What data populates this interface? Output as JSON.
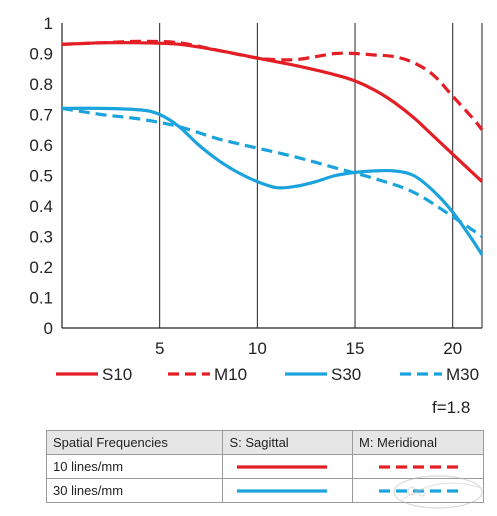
{
  "chart_data": {
    "type": "line",
    "title": "",
    "xlabel": "",
    "ylabel": "",
    "xlim": [
      0,
      21.5
    ],
    "ylim": [
      0,
      1
    ],
    "x_ticks": [
      5,
      10,
      15,
      20
    ],
    "y_ticks": [
      0,
      0.1,
      0.2,
      0.3,
      0.4,
      0.5,
      0.6,
      0.7,
      0.8,
      0.9,
      1
    ],
    "y_tick_labels": [
      "0",
      "0.1",
      "0.2",
      "0.3",
      "0.4",
      "0.5",
      "0.6",
      "0.7",
      "0.8",
      "0.9",
      "1"
    ],
    "grid": true,
    "legend_position": "bottom",
    "series": [
      {
        "name": "S10",
        "color": "#e31e24",
        "style": "solid",
        "points": [
          [
            0,
            0.93
          ],
          [
            2,
            0.935
          ],
          [
            4,
            0.935
          ],
          [
            6,
            0.93
          ],
          [
            8,
            0.91
          ],
          [
            10,
            0.885
          ],
          [
            12,
            0.86
          ],
          [
            14,
            0.83
          ],
          [
            15,
            0.81
          ],
          [
            16,
            0.78
          ],
          [
            17,
            0.74
          ],
          [
            18,
            0.69
          ],
          [
            19,
            0.63
          ],
          [
            20,
            0.57
          ],
          [
            21,
            0.51
          ],
          [
            21.5,
            0.48
          ]
        ]
      },
      {
        "name": "M10",
        "color": "#e31e24",
        "style": "dashed",
        "points": [
          [
            0,
            0.93
          ],
          [
            2,
            0.935
          ],
          [
            4,
            0.94
          ],
          [
            6,
            0.935
          ],
          [
            8,
            0.91
          ],
          [
            10,
            0.885
          ],
          [
            11,
            0.88
          ],
          [
            12,
            0.88
          ],
          [
            13,
            0.89
          ],
          [
            14,
            0.9
          ],
          [
            15,
            0.9
          ],
          [
            16,
            0.895
          ],
          [
            17,
            0.89
          ],
          [
            18,
            0.87
          ],
          [
            19,
            0.83
          ],
          [
            20,
            0.76
          ],
          [
            21,
            0.69
          ],
          [
            21.5,
            0.65
          ]
        ]
      },
      {
        "name": "S30",
        "color": "#1aa3dc",
        "style": "solid",
        "points": [
          [
            0,
            0.72
          ],
          [
            2,
            0.72
          ],
          [
            4,
            0.715
          ],
          [
            5,
            0.7
          ],
          [
            6,
            0.66
          ],
          [
            7,
            0.6
          ],
          [
            8,
            0.55
          ],
          [
            9,
            0.51
          ],
          [
            10,
            0.48
          ],
          [
            11,
            0.46
          ],
          [
            12,
            0.465
          ],
          [
            13,
            0.48
          ],
          [
            14,
            0.5
          ],
          [
            15,
            0.51
          ],
          [
            16,
            0.515
          ],
          [
            17,
            0.515
          ],
          [
            18,
            0.5
          ],
          [
            19,
            0.45
          ],
          [
            20,
            0.38
          ],
          [
            21,
            0.29
          ],
          [
            21.5,
            0.24
          ]
        ]
      },
      {
        "name": "M30",
        "color": "#1aa3dc",
        "style": "dashed",
        "points": [
          [
            0,
            0.72
          ],
          [
            2,
            0.7
          ],
          [
            4,
            0.685
          ],
          [
            6,
            0.66
          ],
          [
            8,
            0.62
          ],
          [
            10,
            0.59
          ],
          [
            12,
            0.56
          ],
          [
            14,
            0.525
          ],
          [
            16,
            0.49
          ],
          [
            18,
            0.445
          ],
          [
            20,
            0.365
          ],
          [
            21.5,
            0.3
          ]
        ]
      }
    ],
    "annotation": "f=1.8"
  },
  "key_table": {
    "headers": [
      "Spatial Frequencies",
      "S: Sagittal",
      "M: Meridional"
    ],
    "rows": [
      {
        "label": "10 lines/mm",
        "color": "#e31e24"
      },
      {
        "label": "30 lines/mm",
        "color": "#1aa3dc"
      }
    ]
  }
}
